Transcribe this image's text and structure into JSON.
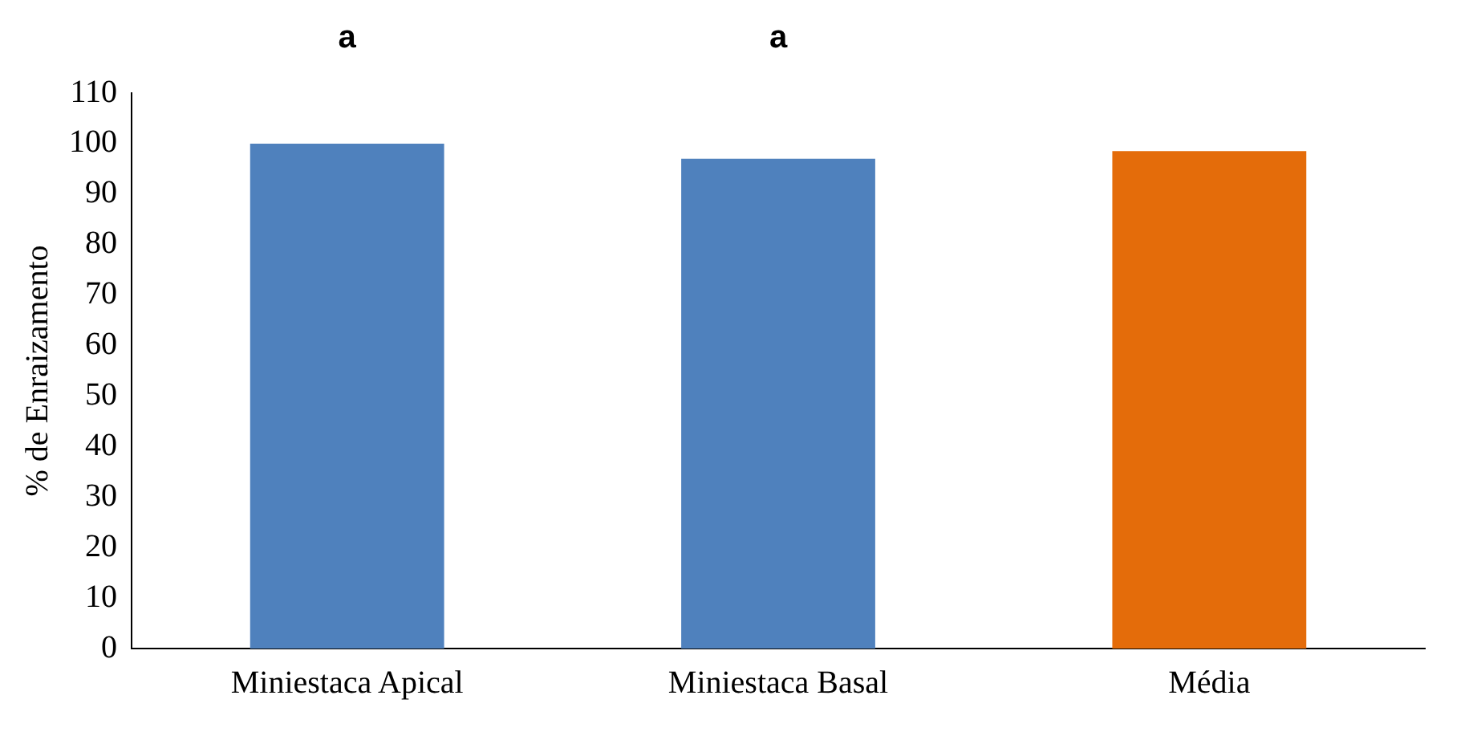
{
  "chart_data": {
    "type": "bar",
    "ylabel": "% de Enraizamento",
    "categories": [
      "Miniestaca Apical",
      "Miniestaca Basal",
      "Média"
    ],
    "values": [
      100,
      97,
      98.5
    ],
    "colors": [
      "#4f81bd",
      "#4f81bd",
      "#e46c0a"
    ],
    "ylim": [
      0,
      110
    ],
    "yticks": [
      0,
      10,
      20,
      30,
      40,
      50,
      60,
      70,
      80,
      90,
      100,
      110
    ],
    "grid": false,
    "legend": false,
    "annotations": [
      "a",
      "a"
    ]
  }
}
